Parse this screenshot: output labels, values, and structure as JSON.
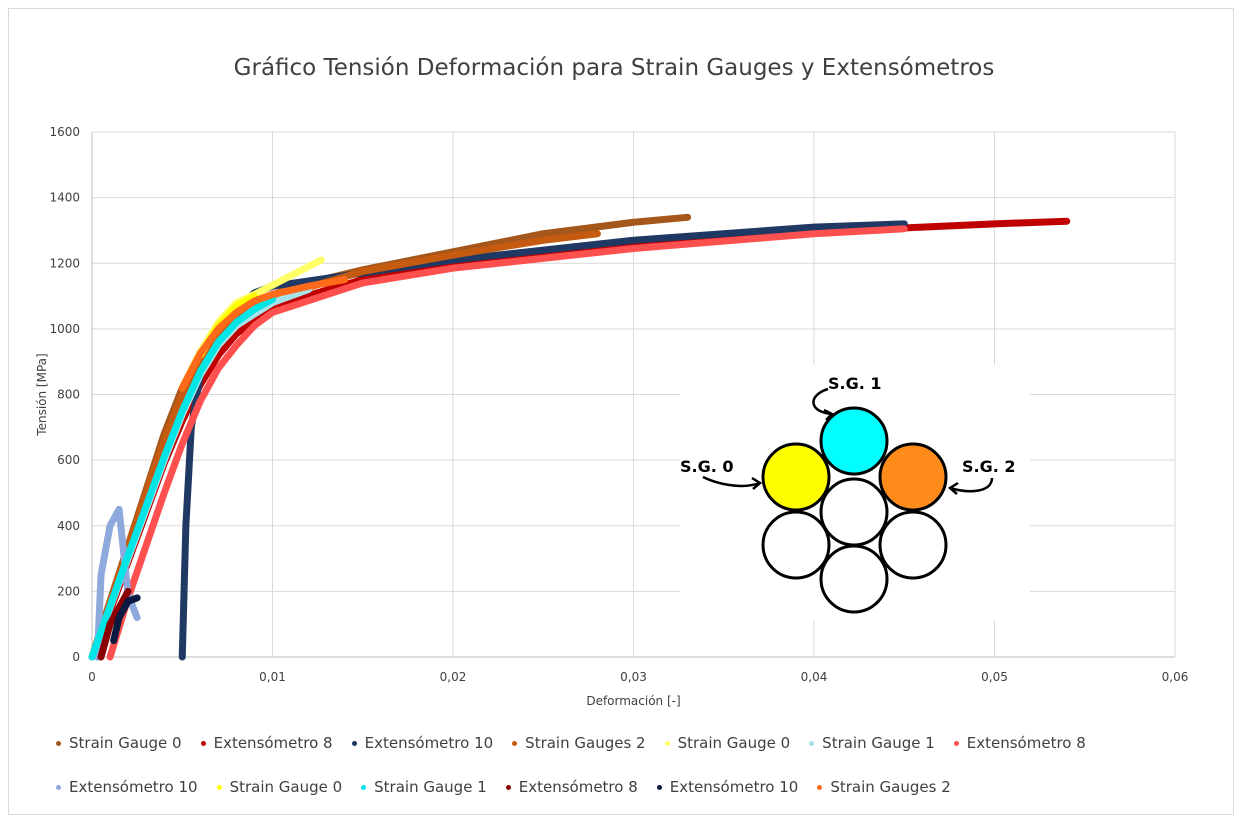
{
  "chart_data": {
    "type": "scatter",
    "title": "Gráfico Tensión Deformación para Strain Gauges y Extensómetros",
    "xlabel": "Deformación [-]",
    "ylabel": "Tensión [MPa]",
    "xlim": [
      0,
      0.06
    ],
    "ylim": [
      0,
      1600
    ],
    "x_ticks": [
      "0",
      "0,01",
      "0,02",
      "0,03",
      "0,04",
      "0,05",
      "0,06"
    ],
    "y_ticks": [
      "0",
      "200",
      "400",
      "600",
      "800",
      "1000",
      "1200",
      "1400",
      "1600"
    ],
    "grid": true,
    "legend_position": "bottom",
    "series": [
      {
        "name": "Strain Gauge 0",
        "color": "#a5561b",
        "x": [
          0,
          0.001,
          0.002,
          0.003,
          0.004,
          0.005,
          0.006,
          0.007,
          0.008,
          0.01,
          0.012,
          0.015,
          0.02,
          0.025,
          0.03,
          0.033
        ],
        "y": [
          0,
          170,
          340,
          510,
          680,
          820,
          930,
          1010,
          1055,
          1105,
          1140,
          1180,
          1235,
          1290,
          1325,
          1340
        ]
      },
      {
        "name": "Extensómetro 8",
        "color": "#c00000",
        "x": [
          0,
          0.001,
          0.002,
          0.003,
          0.004,
          0.005,
          0.006,
          0.007,
          0.008,
          0.01,
          0.015,
          0.02,
          0.03,
          0.04,
          0.05,
          0.054
        ],
        "y": [
          0,
          140,
          290,
          440,
          590,
          720,
          830,
          920,
          985,
          1070,
          1150,
          1195,
          1255,
          1295,
          1320,
          1328
        ]
      },
      {
        "name": "Extensómetro 10",
        "color": "#1f3864",
        "x": [
          0.005,
          0.0052,
          0.0055,
          0.006,
          0.007,
          0.008,
          0.009,
          0.01,
          0.015,
          0.02,
          0.03,
          0.04,
          0.045
        ],
        "y": [
          0,
          400,
          700,
          860,
          980,
          1060,
          1110,
          1130,
          1170,
          1210,
          1270,
          1310,
          1320
        ]
      },
      {
        "name": "Strain Gauges 2",
        "color": "#c55a11",
        "x": [
          0,
          0.001,
          0.002,
          0.003,
          0.004,
          0.005,
          0.006,
          0.007,
          0.008,
          0.01,
          0.015,
          0.02,
          0.025,
          0.028
        ],
        "y": [
          0,
          165,
          335,
          500,
          660,
          800,
          910,
          990,
          1040,
          1095,
          1175,
          1225,
          1270,
          1290
        ]
      },
      {
        "name": "Strain Gauge 0",
        "color": "#ffff66",
        "x": [
          0.005,
          0.006,
          0.007,
          0.008,
          0.009,
          0.0127
        ],
        "y": [
          820,
          930,
          1020,
          1080,
          1105,
          1210
        ]
      },
      {
        "name": "Strain Gauge 1",
        "color": "#a6e3ea",
        "x": [
          0,
          0.001,
          0.002,
          0.003,
          0.004,
          0.005,
          0.006,
          0.007,
          0.008,
          0.01,
          0.012
        ],
        "y": [
          0,
          150,
          300,
          450,
          600,
          740,
          860,
          950,
          1010,
          1080,
          1120
        ]
      },
      {
        "name": "Extensómetro 8",
        "color": "#ff5050",
        "x": [
          0.001,
          0.002,
          0.003,
          0.004,
          0.005,
          0.006,
          0.007,
          0.008,
          0.009,
          0.01,
          0.015,
          0.02,
          0.03,
          0.04,
          0.045
        ],
        "y": [
          0,
          180,
          340,
          500,
          650,
          780,
          880,
          950,
          1010,
          1050,
          1140,
          1185,
          1245,
          1290,
          1305
        ]
      },
      {
        "name": "Extensómetro 10",
        "color": "#8ea9db",
        "x": [
          0.0003,
          0.0005,
          0.001,
          0.0015,
          0.002,
          0.0025
        ],
        "y": [
          0,
          250,
          400,
          450,
          190,
          120
        ]
      },
      {
        "name": "Strain Gauge 0",
        "color": "#ffff00",
        "x": [
          0.006,
          0.007,
          0.008,
          0.009
        ],
        "y": [
          920,
          1010,
          1070,
          1100
        ]
      },
      {
        "name": "Strain Gauge 1",
        "color": "#00e5e5",
        "x": [
          0,
          0.001,
          0.002,
          0.003,
          0.004,
          0.005,
          0.006,
          0.007,
          0.008,
          0.009,
          0.01
        ],
        "y": [
          0,
          155,
          310,
          460,
          610,
          750,
          870,
          960,
          1020,
          1060,
          1090
        ]
      },
      {
        "name": "Extensómetro 8",
        "color": "#8b0000",
        "x": [
          0.0005,
          0.001,
          0.0015,
          0.002
        ],
        "y": [
          0,
          100,
          150,
          200
        ]
      },
      {
        "name": "Extensómetro 10",
        "color": "#0b1a40",
        "x": [
          0.0012,
          0.0015,
          0.002,
          0.0025
        ],
        "y": [
          50,
          120,
          170,
          180
        ]
      },
      {
        "name": "Strain Gauges 2",
        "color": "#ff6a1a",
        "x": [
          0.005,
          0.006,
          0.007,
          0.008,
          0.009,
          0.01,
          0.012,
          0.014
        ],
        "y": [
          820,
          925,
          1000,
          1050,
          1085,
          1105,
          1130,
          1150
        ]
      }
    ]
  },
  "inset": {
    "labels": {
      "sg0": "S.G. 0",
      "sg1": "S.G. 1",
      "sg2": "S.G. 2"
    },
    "colors": {
      "sg0": "#ffff00",
      "sg1": "#00ffff",
      "sg2": "#ff8c1a",
      "empty": "#ffffff",
      "stroke": "#000000"
    }
  },
  "legend": {
    "rows": [
      [
        {
          "label": "Strain Gauge 0",
          "color": "#a5561b"
        },
        {
          "label": "Extensómetro 8",
          "color": "#c00000"
        },
        {
          "label": "Extensómetro 10",
          "color": "#1f3864"
        },
        {
          "label": "Strain Gauges 2",
          "color": "#c55a11"
        },
        {
          "label": "Strain Gauge 0",
          "color": "#ffff66"
        },
        {
          "label": "Strain Gauge 1",
          "color": "#a6e3ea"
        },
        {
          "label": "Extensómetro 8",
          "color": "#ff5050"
        }
      ],
      [
        {
          "label": "Extensómetro 10",
          "color": "#8ea9db"
        },
        {
          "label": "Strain Gauge 0",
          "color": "#ffff00"
        },
        {
          "label": "Strain Gauge 1",
          "color": "#00e5e5"
        },
        {
          "label": "Extensómetro 8",
          "color": "#8b0000"
        },
        {
          "label": "Extensómetro 10",
          "color": "#0b1a40"
        },
        {
          "label": "Strain Gauges 2",
          "color": "#ff6a1a"
        }
      ]
    ]
  }
}
